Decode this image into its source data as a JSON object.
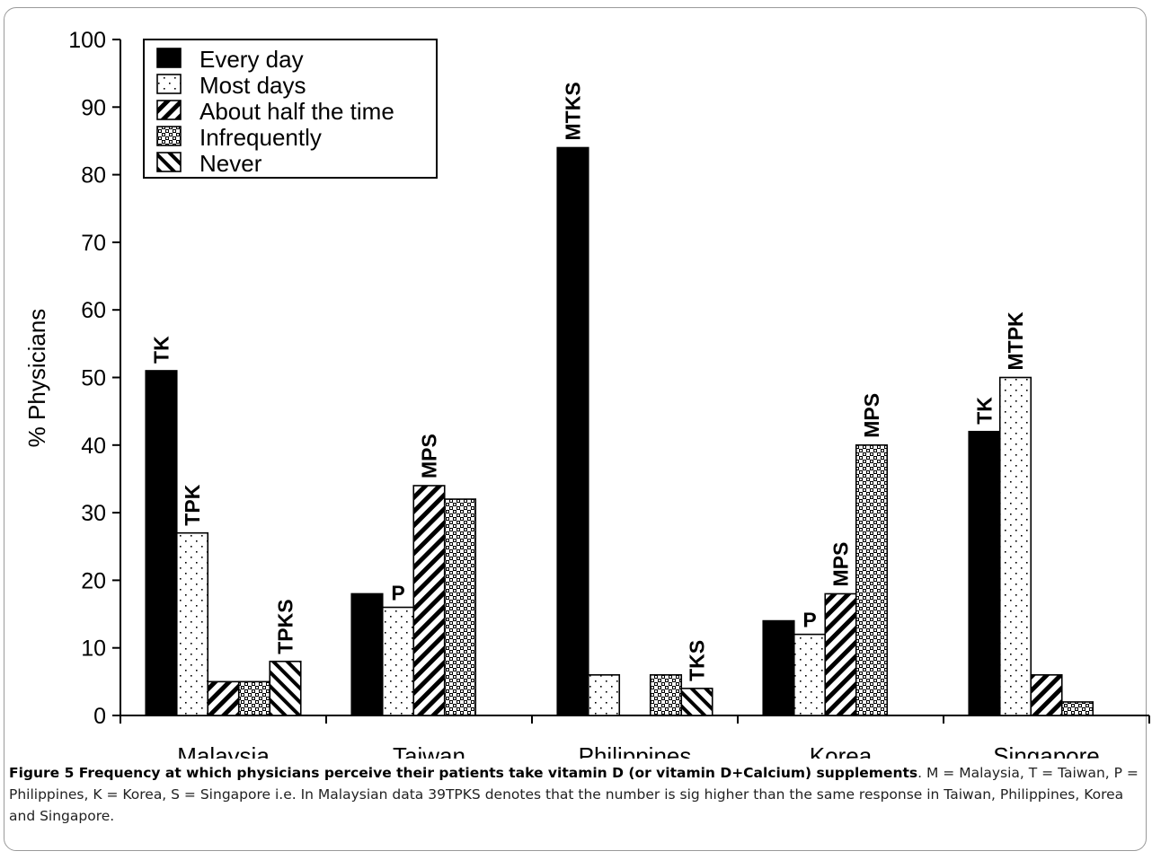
{
  "chart_data": {
    "type": "bar",
    "title": "",
    "xlabel": "",
    "ylabel": "% Physicians",
    "ylim": [
      0,
      100
    ],
    "yticks": [
      0,
      10,
      20,
      30,
      40,
      50,
      60,
      70,
      80,
      90,
      100
    ],
    "grid": false,
    "legend_position": "top-left",
    "categories": [
      "Malaysia",
      "Taiwan",
      "Philippines",
      "Korea",
      "Singapore"
    ],
    "series": [
      {
        "name": "Every day",
        "pattern": "solid",
        "values": [
          51,
          18,
          84,
          14,
          42
        ],
        "labels": [
          "TK",
          "",
          "MTKS",
          "",
          "TK"
        ]
      },
      {
        "name": "Most days",
        "pattern": "dots",
        "values": [
          27,
          16,
          6,
          12,
          50
        ],
        "labels": [
          "TPK",
          "P",
          "",
          "P",
          "MTPK"
        ]
      },
      {
        "name": "About half the time",
        "pattern": "diagonal",
        "values": [
          5,
          34,
          0,
          18,
          6
        ],
        "labels": [
          "",
          "MPS",
          "",
          "MPS",
          ""
        ]
      },
      {
        "name": "Infrequently",
        "pattern": "checker",
        "values": [
          5,
          32,
          6,
          40,
          2
        ],
        "labels": [
          "",
          "",
          "",
          "MPS",
          ""
        ]
      },
      {
        "name": "Never",
        "pattern": "backdiagonal",
        "values": [
          8,
          0,
          4,
          0,
          0
        ],
        "labels": [
          "TPKS",
          "",
          "TKS",
          "",
          ""
        ]
      }
    ]
  },
  "caption": {
    "bold": "Figure 5 Frequency at which physicians perceive their patients take vitamin D (or vitamin D+Calcium) supplements",
    "rest": ". M = Malaysia, T = Taiwan, P = Philippines, K = Korea, S = Singapore i.e. In Malaysian data 39TPKS denotes that the number is sig higher than the same response in Taiwan, Philippines, Korea and Singapore."
  }
}
